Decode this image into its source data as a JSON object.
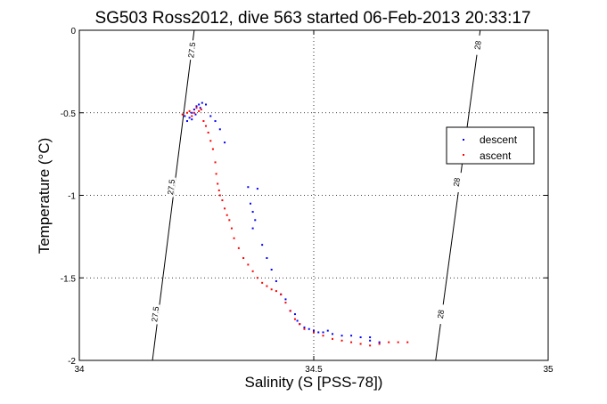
{
  "chart_data": {
    "type": "scatter",
    "title": "SG503 Ross2012, dive 563 started 06-Feb-2013 20:33:17",
    "xlabel": "Salinity (S [PSS-78])",
    "ylabel": "Temperature (°C)",
    "xlim": [
      34,
      35
    ],
    "ylim": [
      -2,
      0
    ],
    "xticks": [
      34,
      34.5,
      35
    ],
    "xtick_labels": [
      "34",
      "34.5",
      "35"
    ],
    "yticks": [
      0,
      -0.5,
      -1,
      -1.5,
      -2
    ],
    "ytick_labels": [
      "0",
      "-0.5",
      "-1",
      "-1.5",
      "-2"
    ],
    "grid": true,
    "legend": "right",
    "contours": [
      {
        "label": "27.5",
        "points": [
          [
            34.156,
            -2.0
          ],
          [
            34.245,
            0.0
          ]
        ],
        "label_positions": [
          [
            34.24,
            -0.12
          ],
          [
            34.196,
            -0.95
          ],
          [
            34.162,
            -1.72
          ]
        ]
      },
      {
        "label": "28",
        "points": [
          [
            34.76,
            -2.0
          ],
          [
            34.855,
            0.0
          ]
        ],
        "label_positions": [
          [
            34.85,
            -0.09
          ],
          [
            34.805,
            -0.92
          ],
          [
            34.771,
            -1.72
          ]
        ]
      }
    ],
    "series": [
      {
        "name": "descent",
        "color": "#0000ff",
        "points": [
          [
            34.255,
            -0.45
          ],
          [
            34.262,
            -0.44
          ],
          [
            34.27,
            -0.45
          ],
          [
            34.25,
            -0.46
          ],
          [
            34.245,
            -0.48
          ],
          [
            34.24,
            -0.5
          ],
          [
            34.248,
            -0.51
          ],
          [
            34.235,
            -0.53
          ],
          [
            34.23,
            -0.55
          ],
          [
            34.225,
            -0.52
          ],
          [
            34.24,
            -0.54
          ],
          [
            34.258,
            -0.47
          ],
          [
            34.28,
            -0.52
          ],
          [
            34.29,
            -0.55
          ],
          [
            34.3,
            -0.6
          ],
          [
            34.31,
            -0.68
          ],
          [
            34.36,
            -0.95
          ],
          [
            34.38,
            -0.96
          ],
          [
            34.365,
            -1.05
          ],
          [
            34.37,
            -1.1
          ],
          [
            34.375,
            -1.15
          ],
          [
            34.37,
            -1.2
          ],
          [
            34.39,
            -1.3
          ],
          [
            34.4,
            -1.38
          ],
          [
            34.41,
            -1.45
          ],
          [
            34.42,
            -1.52
          ],
          [
            34.43,
            -1.6
          ],
          [
            34.44,
            -1.63
          ],
          [
            34.45,
            -1.7
          ],
          [
            34.46,
            -1.72
          ],
          [
            34.465,
            -1.76
          ],
          [
            34.47,
            -1.78
          ],
          [
            34.48,
            -1.8
          ],
          [
            34.49,
            -1.81
          ],
          [
            34.5,
            -1.82
          ],
          [
            34.51,
            -1.83
          ],
          [
            34.52,
            -1.83
          ],
          [
            34.53,
            -1.82
          ],
          [
            34.54,
            -1.84
          ],
          [
            34.56,
            -1.85
          ],
          [
            34.58,
            -1.85
          ],
          [
            34.6,
            -1.86
          ],
          [
            34.62,
            -1.88
          ],
          [
            34.64,
            -1.89
          ],
          [
            34.62,
            -1.86
          ]
        ]
      },
      {
        "name": "ascent",
        "color": "#ff0000",
        "points": [
          [
            34.25,
            -0.47
          ],
          [
            34.245,
            -0.5
          ],
          [
            34.255,
            -0.49
          ],
          [
            34.24,
            -0.52
          ],
          [
            34.23,
            -0.5
          ],
          [
            34.22,
            -0.51
          ],
          [
            34.235,
            -0.49
          ],
          [
            34.26,
            -0.48
          ],
          [
            34.265,
            -0.55
          ],
          [
            34.27,
            -0.58
          ],
          [
            34.275,
            -0.62
          ],
          [
            34.28,
            -0.67
          ],
          [
            34.285,
            -0.72
          ],
          [
            34.29,
            -0.8
          ],
          [
            34.292,
            -0.87
          ],
          [
            34.295,
            -0.93
          ],
          [
            34.298,
            -0.97
          ],
          [
            34.3,
            -1.0
          ],
          [
            34.305,
            -1.03
          ],
          [
            34.31,
            -1.08
          ],
          [
            34.315,
            -1.12
          ],
          [
            34.32,
            -1.15
          ],
          [
            34.325,
            -1.2
          ],
          [
            34.33,
            -1.26
          ],
          [
            34.34,
            -1.32
          ],
          [
            34.35,
            -1.38
          ],
          [
            34.36,
            -1.42
          ],
          [
            34.37,
            -1.46
          ],
          [
            34.38,
            -1.5
          ],
          [
            34.39,
            -1.53
          ],
          [
            34.4,
            -1.55
          ],
          [
            34.41,
            -1.57
          ],
          [
            34.42,
            -1.58
          ],
          [
            34.43,
            -1.6
          ],
          [
            34.44,
            -1.65
          ],
          [
            34.45,
            -1.7
          ],
          [
            34.46,
            -1.75
          ],
          [
            34.47,
            -1.78
          ],
          [
            34.48,
            -1.81
          ],
          [
            34.5,
            -1.83
          ],
          [
            34.52,
            -1.85
          ],
          [
            34.54,
            -1.87
          ],
          [
            34.56,
            -1.88
          ],
          [
            34.58,
            -1.89
          ],
          [
            34.6,
            -1.9
          ],
          [
            34.62,
            -1.91
          ],
          [
            34.64,
            -1.9
          ],
          [
            34.66,
            -1.89
          ],
          [
            34.68,
            -1.89
          ],
          [
            34.7,
            -1.89
          ]
        ]
      }
    ]
  }
}
